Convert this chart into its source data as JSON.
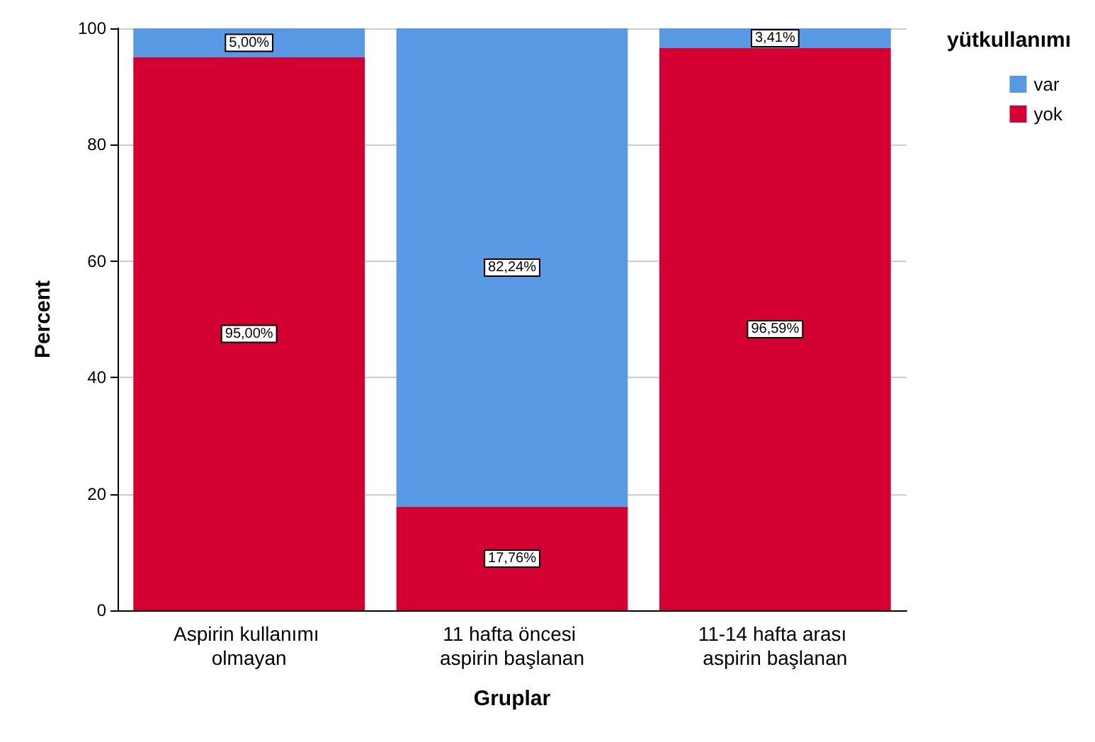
{
  "chart_data": {
    "type": "bar",
    "stacked": true,
    "xlabel": "Gruplar",
    "ylabel": "Percent",
    "legend_title": "yütkullanımı",
    "legend": "top right",
    "categories": [
      "Aspirin kullanımı olmayan",
      "11 hafta öncesi aspirin başlanan",
      "11-14 hafta arası aspirin başlanan"
    ],
    "series": [
      {
        "name": "yok",
        "color": "#d50032",
        "values": [
          95.0,
          17.76,
          96.59
        ],
        "value_labels": [
          "95,00%",
          "17,76%",
          "96,59%"
        ]
      },
      {
        "name": "var",
        "color": "#5799e3",
        "values": [
          5.0,
          82.24,
          3.41
        ],
        "value_labels": [
          "5,00%",
          "82,24%",
          "3,41%"
        ]
      }
    ],
    "ylim": [
      0,
      100
    ],
    "yticks": [
      0,
      20,
      40,
      60,
      80,
      100
    ],
    "grid": "y"
  }
}
